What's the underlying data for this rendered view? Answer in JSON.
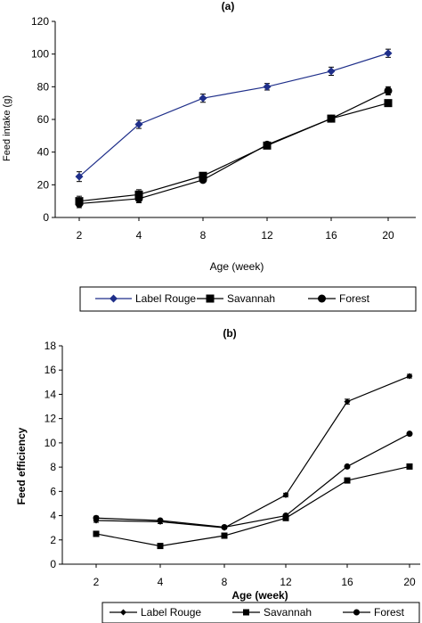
{
  "chart_data": [
    {
      "type": "line",
      "title": "(a)",
      "xlabel": "Age (week)",
      "ylabel": "Feed intake (g)",
      "categories": [
        "2",
        "4",
        "8",
        "12",
        "16",
        "20"
      ],
      "ylim": [
        0,
        120
      ],
      "yticks": [
        0,
        20,
        40,
        60,
        80,
        100,
        120
      ],
      "grid": false,
      "legend_position": "bottom",
      "series": [
        {
          "name": "Label Rouge",
          "marker": "diamond",
          "color": "#1f2f8a",
          "values": [
            25,
            57,
            73,
            80,
            89.5,
            100.5
          ],
          "errors": [
            3,
            2.5,
            2.5,
            2,
            2.5,
            2.5
          ]
        },
        {
          "name": "Savannah",
          "marker": "square",
          "color": "#000000",
          "values": [
            10,
            14,
            25.5,
            44,
            60.5,
            70
          ],
          "errors": [
            3,
            3,
            2,
            1.5,
            1.5,
            1
          ]
        },
        {
          "name": "Forest",
          "marker": "circle",
          "color": "#000000",
          "values": [
            8.5,
            11.5,
            23,
            44.5,
            60.5,
            77.5
          ],
          "errors": [
            2.5,
            2.5,
            1.5,
            1.5,
            1.5,
            2.5
          ]
        }
      ]
    },
    {
      "type": "line",
      "title": "(b)",
      "xlabel": "Age (week)",
      "ylabel": "Feed efficiency",
      "categories": [
        "2",
        "4",
        "8",
        "12",
        "16",
        "20"
      ],
      "ylim": [
        0,
        18
      ],
      "yticks": [
        0,
        2,
        4,
        6,
        8,
        10,
        12,
        14,
        16,
        18
      ],
      "grid": false,
      "legend_position": "bottom",
      "series": [
        {
          "name": "Label Rouge",
          "marker": "diamond",
          "color": "#000000",
          "values": [
            3.6,
            3.5,
            3.0,
            5.7,
            13.4,
            15.5
          ],
          "errors": [
            0.15,
            0.15,
            0.1,
            0.15,
            0.2,
            0.15
          ]
        },
        {
          "name": "Savannah",
          "marker": "square",
          "color": "#000000",
          "values": [
            2.5,
            1.5,
            2.35,
            3.8,
            6.9,
            8.05
          ],
          "errors": [
            0.1,
            0.1,
            0.1,
            0.1,
            0.1,
            0.1
          ]
        },
        {
          "name": "Forest",
          "marker": "circle",
          "color": "#000000",
          "values": [
            3.8,
            3.6,
            3.05,
            4.0,
            8.05,
            10.75
          ],
          "errors": [
            0.15,
            0.1,
            0.1,
            0.1,
            0.1,
            0.1
          ]
        }
      ]
    }
  ]
}
